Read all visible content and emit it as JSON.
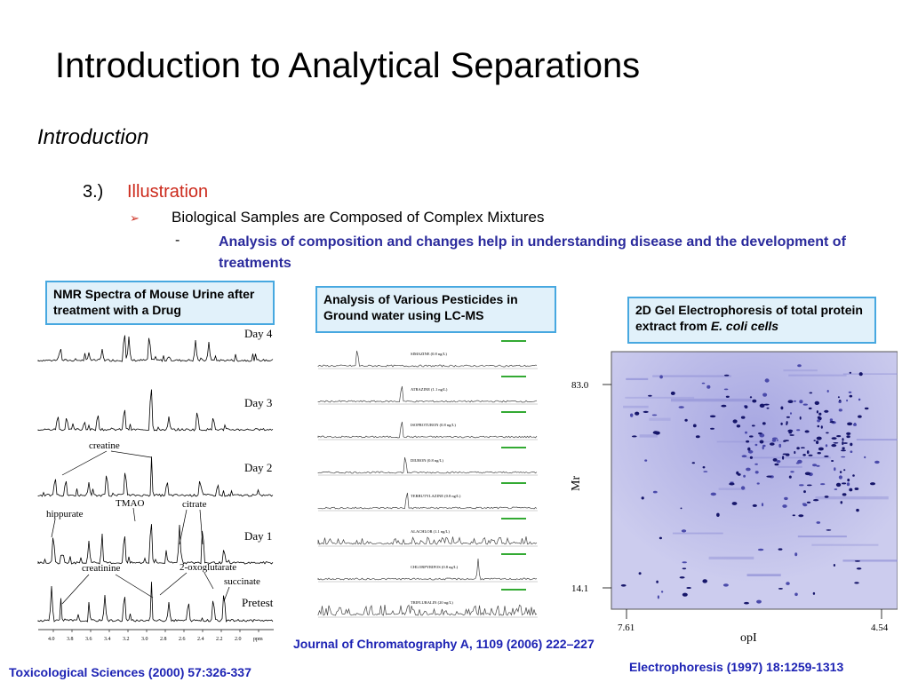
{
  "slide": {
    "title": "Introduction to Analytical Separations",
    "section": "Introduction",
    "item_number": "3.)",
    "item_label": "Illustration",
    "bullet_arrow": "➢",
    "bullet": "Biological Samples are Composed of Complex Mixtures",
    "sub_dash": "-",
    "sub_bullet": "Analysis of composition and changes help in understanding disease and the development of treatments"
  },
  "callouts": {
    "nmr": "NMR Spectra of Mouse Urine after treatment with a Drug",
    "lcms": "Analysis of Various Pesticides in Ground water using LC-MS",
    "gel_prefix": "2D Gel Electrophoresis of total protein extract from ",
    "gel_italic": "E. coli cells"
  },
  "references": {
    "lcms": "Journal of Chromatography A, 1109 (2006) 222–227",
    "nmr": "Toxicological Sciences (2000) 57:326-337",
    "gel": "Electrophoresis (1997) 18:1259-1313"
  },
  "nmr_figure": {
    "traces": [
      "Day 4",
      "Day 3",
      "Day 2",
      "Day 1",
      "Pretest"
    ],
    "annotations": [
      "creatine",
      "hippurate",
      "TMAO",
      "citrate",
      "creatinine",
      "2-oxoglutarate",
      "succinate"
    ],
    "axis_ticks": [
      "4.0",
      "3.8",
      "3.6",
      "3.4",
      "3.2",
      "3.0",
      "2.8",
      "2.6",
      "2.4",
      "2.2",
      "2.0",
      "ppm"
    ]
  },
  "lcms_figure": {
    "compounds": [
      "SIMAZINE (0.8 ng/L)",
      "ATRAZINE (1.1 ng/L)",
      "ISOPROTURON (0.8 ng/L)",
      "DIURON (0.8 ng/L)",
      "TERBUTYLAZINE (0.8 ng/L)",
      "ALACHLOR (1.1 ng/L)",
      "CHLORPYRIFOS (0.8 ng/L)",
      "TRIFLURALIN (20 ng/L)"
    ]
  },
  "gel_figure": {
    "y_top_label": "83.0",
    "y_bottom_label": "14.1",
    "y_axis_label": "Mr",
    "x_left_label": "7.61",
    "x_right_label": "4.54",
    "x_axis_label": "opI"
  },
  "colors": {
    "bullet_red": "#cc2a1c",
    "sub_bullet_blue": "#2a2a9c",
    "reference_blue": "#1d23b4",
    "callout_fill": "#e1f1fa",
    "callout_border": "#47a8e0",
    "gel_background": "#c8c8ee"
  }
}
